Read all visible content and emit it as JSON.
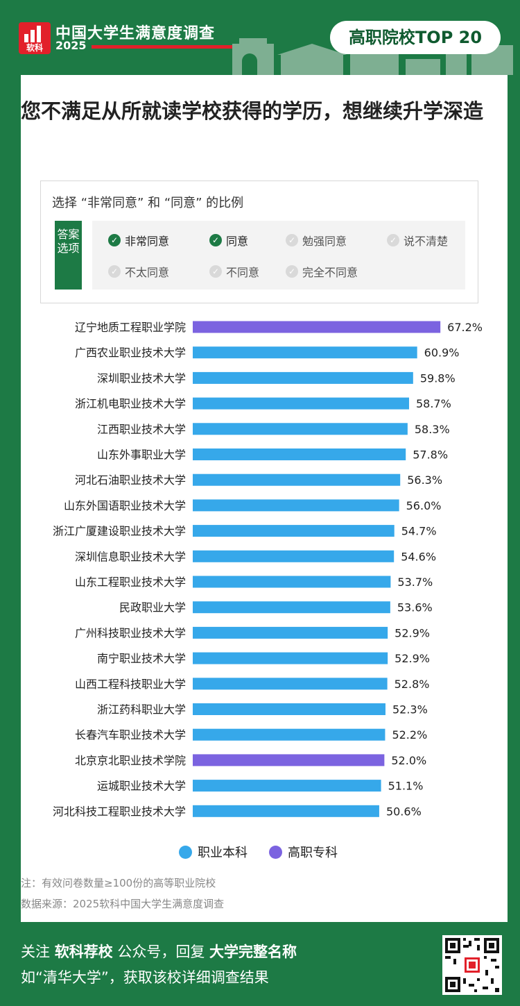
{
  "header": {
    "logo_text": "软科",
    "brand_title": "中国大学生满意度调查",
    "brand_year": "2025",
    "badge": "高职院校TOP 20"
  },
  "question": "您不满足从所就读学校获得的学历，想继续升学深造",
  "options": {
    "caption": "选择 “非常同意” 和 “同意” 的比例",
    "side_label": "答案选项",
    "items": [
      {
        "label": "非常同意",
        "selected": true
      },
      {
        "label": "同意",
        "selected": true
      },
      {
        "label": "勉强同意",
        "selected": false
      },
      {
        "label": "说不清楚",
        "selected": false
      },
      {
        "label": "不太同意",
        "selected": false
      },
      {
        "label": "不同意",
        "selected": false
      },
      {
        "label": "完全不同意",
        "selected": false
      }
    ]
  },
  "colors": {
    "primary_green": "#1d7a45",
    "series_bachelor": "#36a8ea",
    "series_specialist": "#7b63e0",
    "brand_red": "#e2202a"
  },
  "chart_data": {
    "type": "bar",
    "orientation": "horizontal",
    "unit": "%",
    "xlim": [
      0,
      100
    ],
    "grid": false,
    "legend_position": "bottom",
    "categories": [
      "辽宁地质工程职业学院",
      "广西农业职业技术大学",
      "深圳职业技术大学",
      "浙江机电职业技术大学",
      "江西职业技术大学",
      "山东外事职业大学",
      "河北石油职业技术大学",
      "山东外国语职业技术大学",
      "浙江广厦建设职业技术大学",
      "深圳信息职业技术大学",
      "山东工程职业技术大学",
      "民政职业大学",
      "广州科技职业技术大学",
      "南宁职业技术大学",
      "山西工程科技职业大学",
      "浙江药科职业大学",
      "长春汽车职业技术大学",
      "北京京北职业技术学院",
      "运城职业技术大学",
      "河北科技工程职业技术大学"
    ],
    "values": [
      67.2,
      60.9,
      59.8,
      58.7,
      58.3,
      57.8,
      56.3,
      56.0,
      54.7,
      54.6,
      53.7,
      53.6,
      52.9,
      52.9,
      52.8,
      52.3,
      52.2,
      52.0,
      51.1,
      50.6
    ],
    "value_labels": [
      "67.2%",
      "60.9%",
      "59.8%",
      "58.7%",
      "58.3%",
      "57.8%",
      "56.3%",
      "56.0%",
      "54.7%",
      "54.6%",
      "53.7%",
      "53.6%",
      "52.9%",
      "52.9%",
      "52.8%",
      "52.3%",
      "52.2%",
      "52.0%",
      "51.1%",
      "50.6%"
    ],
    "groups": [
      "高职专科",
      "职业本科",
      "职业本科",
      "职业本科",
      "职业本科",
      "职业本科",
      "职业本科",
      "职业本科",
      "职业本科",
      "职业本科",
      "职业本科",
      "职业本科",
      "职业本科",
      "职业本科",
      "职业本科",
      "职业本科",
      "职业本科",
      "高职专科",
      "职业本科",
      "职业本科"
    ],
    "series": [
      {
        "name": "职业本科",
        "color": "#36a8ea"
      },
      {
        "name": "高职专科",
        "color": "#7b63e0"
      }
    ]
  },
  "notes": {
    "note": "注：有效问卷数量≥100份的高等职业院校",
    "source": "数据来源：2025软科中国大学生满意度调查"
  },
  "footer": {
    "line1_a": "关注 ",
    "line1_b": "软科荐校",
    "line1_c": " 公众号，回复 ",
    "line1_d": "大学完整名称",
    "line2": "如“清华大学”，获取该校详细调查结果"
  }
}
